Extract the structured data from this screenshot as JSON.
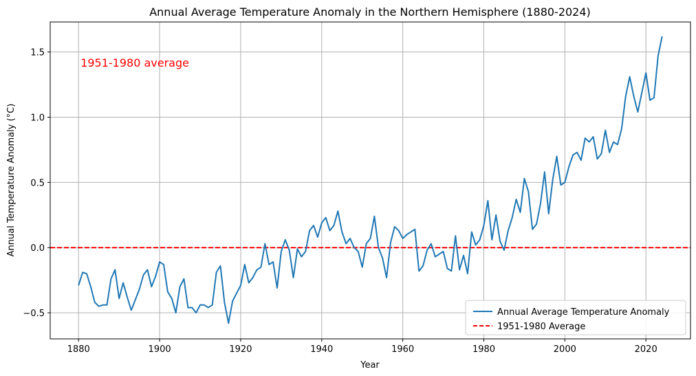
{
  "chart_data": {
    "type": "line",
    "title": "Annual Average Temperature Anomaly in the Northern Hemisphere (1880-2024)",
    "xlabel": "Year",
    "ylabel": "Annual Temperature Anomaly (°C)",
    "xlim": [
      1873,
      2031
    ],
    "ylim": [
      -0.7,
      1.73
    ],
    "x_ticks": [
      1880,
      1900,
      1920,
      1940,
      1960,
      1980,
      2000,
      2020
    ],
    "y_ticks": [
      -0.5,
      0.0,
      0.5,
      1.0,
      1.5
    ],
    "y_tick_labels": [
      "−0.5",
      "0.0",
      "0.5",
      "1.0",
      "1.5"
    ],
    "grid": true,
    "legend_position": "lower-right",
    "annotation": {
      "text": "1951-1980 average",
      "x": 1880.5,
      "y": 1.42,
      "color": "#ff0000"
    },
    "series": [
      {
        "name": "Annual Average Temperature Anomaly",
        "color": "#1f77b4",
        "style": "solid",
        "x": [
          1880,
          1881,
          1882,
          1883,
          1884,
          1885,
          1886,
          1887,
          1888,
          1889,
          1890,
          1891,
          1892,
          1893,
          1894,
          1895,
          1896,
          1897,
          1898,
          1899,
          1900,
          1901,
          1902,
          1903,
          1904,
          1905,
          1906,
          1907,
          1908,
          1909,
          1910,
          1911,
          1912,
          1913,
          1914,
          1915,
          1916,
          1917,
          1918,
          1919,
          1920,
          1921,
          1922,
          1923,
          1924,
          1925,
          1926,
          1927,
          1928,
          1929,
          1930,
          1931,
          1932,
          1933,
          1934,
          1935,
          1936,
          1937,
          1938,
          1939,
          1940,
          1941,
          1942,
          1943,
          1944,
          1945,
          1946,
          1947,
          1948,
          1949,
          1950,
          1951,
          1952,
          1953,
          1954,
          1955,
          1956,
          1957,
          1958,
          1959,
          1960,
          1961,
          1962,
          1963,
          1964,
          1965,
          1966,
          1967,
          1968,
          1969,
          1970,
          1971,
          1972,
          1973,
          1974,
          1975,
          1976,
          1977,
          1978,
          1979,
          1980,
          1981,
          1982,
          1983,
          1984,
          1985,
          1986,
          1987,
          1988,
          1989,
          1990,
          1991,
          1992,
          1993,
          1994,
          1995,
          1996,
          1997,
          1998,
          1999,
          2000,
          2001,
          2002,
          2003,
          2004,
          2005,
          2006,
          2007,
          2008,
          2009,
          2010,
          2011,
          2012,
          2013,
          2014,
          2015,
          2016,
          2017,
          2018,
          2019,
          2020,
          2021,
          2022,
          2023,
          2024
        ],
        "values": [
          -0.29,
          -0.19,
          -0.2,
          -0.3,
          -0.42,
          -0.45,
          -0.44,
          -0.44,
          -0.24,
          -0.17,
          -0.39,
          -0.27,
          -0.38,
          -0.48,
          -0.4,
          -0.32,
          -0.21,
          -0.17,
          -0.3,
          -0.22,
          -0.11,
          -0.13,
          -0.34,
          -0.39,
          -0.5,
          -0.3,
          -0.24,
          -0.46,
          -0.46,
          -0.5,
          -0.44,
          -0.44,
          -0.46,
          -0.44,
          -0.19,
          -0.14,
          -0.42,
          -0.58,
          -0.41,
          -0.35,
          -0.29,
          -0.13,
          -0.27,
          -0.23,
          -0.17,
          -0.15,
          0.03,
          -0.13,
          -0.11,
          -0.31,
          -0.03,
          0.06,
          -0.02,
          -0.23,
          -0.01,
          -0.07,
          -0.03,
          0.13,
          0.17,
          0.08,
          0.19,
          0.23,
          0.13,
          0.17,
          0.28,
          0.12,
          0.03,
          0.07,
          0.0,
          -0.03,
          -0.15,
          0.03,
          0.07,
          0.24,
          0.0,
          -0.08,
          -0.23,
          0.04,
          0.16,
          0.13,
          0.07,
          0.1,
          0.12,
          0.14,
          -0.18,
          -0.14,
          -0.02,
          0.03,
          -0.07,
          -0.05,
          -0.03,
          -0.16,
          -0.18,
          0.09,
          -0.17,
          -0.06,
          -0.2,
          0.12,
          0.02,
          0.06,
          0.17,
          0.36,
          0.06,
          0.25,
          0.05,
          -0.02,
          0.13,
          0.23,
          0.37,
          0.27,
          0.53,
          0.43,
          0.14,
          0.18,
          0.34,
          0.58,
          0.26,
          0.52,
          0.7,
          0.48,
          0.5,
          0.62,
          0.71,
          0.73,
          0.67,
          0.84,
          0.81,
          0.85,
          0.68,
          0.72,
          0.9,
          0.73,
          0.81,
          0.79,
          0.91,
          1.16,
          1.31,
          1.16,
          1.04,
          1.19,
          1.34,
          1.13,
          1.15,
          1.47,
          1.62
        ]
      },
      {
        "name": "1951-1980 Average",
        "color": "#ff0000",
        "style": "dashed",
        "value": 0.0
      }
    ]
  }
}
